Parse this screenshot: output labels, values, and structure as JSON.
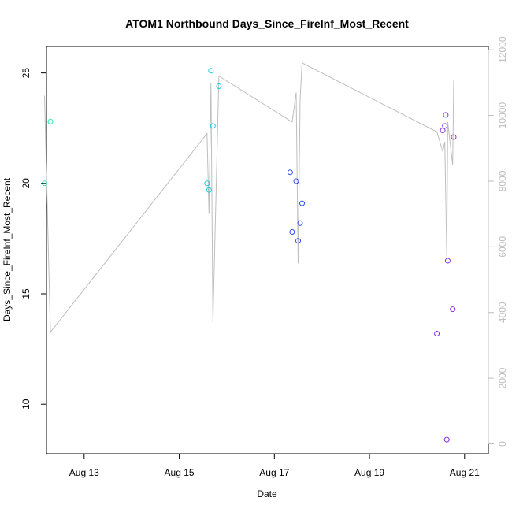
{
  "chart_data": {
    "type": "scatter",
    "title": "ATOM1 Northbound Days_Since_FireInf_Most_Recent",
    "xlabel": "Date",
    "ylabel": "Days_Since_FireInf_Most_Recent",
    "x_range": [
      "2016-08-12T05:00",
      "2016-08-21T12:00"
    ],
    "x_ticks": [
      {
        "date": "2016-08-13T00:00",
        "label": "Aug 13"
      },
      {
        "date": "2016-08-15T00:00",
        "label": "Aug 15"
      },
      {
        "date": "2016-08-17T00:00",
        "label": "Aug 17"
      },
      {
        "date": "2016-08-19T00:00",
        "label": "Aug 19"
      },
      {
        "date": "2016-08-21T00:00",
        "label": "Aug 21"
      }
    ],
    "ylim": [
      7.76,
      26.2
    ],
    "y_ticks": [
      10,
      15,
      20,
      25
    ],
    "y2lim": [
      -300,
      12100
    ],
    "y2_ticks": [
      0,
      2000,
      4000,
      6000,
      8000,
      10000,
      12000
    ],
    "y2_color": "#bebebe",
    "grid": false,
    "points": [
      {
        "x": "2016-08-12T04:00",
        "y": 20.0,
        "color": "#2ee8b0"
      },
      {
        "x": "2016-08-12T07:00",
        "y": 22.8,
        "color": "#2ee8b0"
      },
      {
        "x": "2016-08-15T14:00",
        "y": 20.0,
        "color": "#1ec8e0"
      },
      {
        "x": "2016-08-15T15:00",
        "y": 19.7,
        "color": "#1ec8e0"
      },
      {
        "x": "2016-08-15T16:00",
        "y": 25.1,
        "color": "#1ec8e0"
      },
      {
        "x": "2016-08-15T17:00",
        "y": 22.6,
        "color": "#1ec8e0"
      },
      {
        "x": "2016-08-15T20:00",
        "y": 24.4,
        "color": "#1ec8e0"
      },
      {
        "x": "2016-08-17T08:00",
        "y": 20.5,
        "color": "#2a4ce8"
      },
      {
        "x": "2016-08-17T09:00",
        "y": 17.8,
        "color": "#2a4ce8"
      },
      {
        "x": "2016-08-17T11:00",
        "y": 20.1,
        "color": "#2a4ce8"
      },
      {
        "x": "2016-08-17T12:00",
        "y": 17.4,
        "color": "#2a4ce8"
      },
      {
        "x": "2016-08-17T13:00",
        "y": 18.2,
        "color": "#2a4ce8"
      },
      {
        "x": "2016-08-17T14:00",
        "y": 19.1,
        "color": "#2a4ce8"
      },
      {
        "x": "2016-08-20T10:00",
        "y": 13.2,
        "color": "#8a2ee8"
      },
      {
        "x": "2016-08-20T13:00",
        "y": 22.4,
        "color": "#8a2ee8"
      },
      {
        "x": "2016-08-20T14:00",
        "y": 22.6,
        "color": "#8a2ee8"
      },
      {
        "x": "2016-08-20T14:30",
        "y": 23.1,
        "color": "#8a2ee8"
      },
      {
        "x": "2016-08-20T15:00",
        "y": 8.4,
        "color": "#8a2ee8"
      },
      {
        "x": "2016-08-20T15:30",
        "y": 16.5,
        "color": "#8a2ee8"
      },
      {
        "x": "2016-08-20T18:00",
        "y": 14.3,
        "color": "#8a2ee8"
      },
      {
        "x": "2016-08-20T18:30",
        "y": 22.1,
        "color": "#8a2ee8"
      }
    ],
    "line": [
      {
        "x": "2016-08-12T04:00",
        "y2": 10600
      },
      {
        "x": "2016-08-12T07:00",
        "y2": 3400
      },
      {
        "x": "2016-08-15T14:00",
        "y2": 9450
      },
      {
        "x": "2016-08-15T15:00",
        "y2": 7000
      },
      {
        "x": "2016-08-15T16:00",
        "y2": 11000
      },
      {
        "x": "2016-08-15T17:00",
        "y2": 3700
      },
      {
        "x": "2016-08-15T20:00",
        "y2": 11200
      },
      {
        "x": "2016-08-17T09:00",
        "y2": 9800
      },
      {
        "x": "2016-08-17T11:00",
        "y2": 10700
      },
      {
        "x": "2016-08-17T12:00",
        "y2": 5500
      },
      {
        "x": "2016-08-17T13:00",
        "y2": 10500
      },
      {
        "x": "2016-08-17T14:00",
        "y2": 11600
      },
      {
        "x": "2016-08-20T10:00",
        "y2": 9500
      },
      {
        "x": "2016-08-20T13:00",
        "y2": 8900
      },
      {
        "x": "2016-08-20T14:00",
        "y2": 9200
      },
      {
        "x": "2016-08-20T15:00",
        "y2": 5700
      },
      {
        "x": "2016-08-20T15:30",
        "y2": 9800
      },
      {
        "x": "2016-08-20T18:00",
        "y2": 8500
      },
      {
        "x": "2016-08-20T18:30",
        "y2": 11100
      }
    ]
  }
}
